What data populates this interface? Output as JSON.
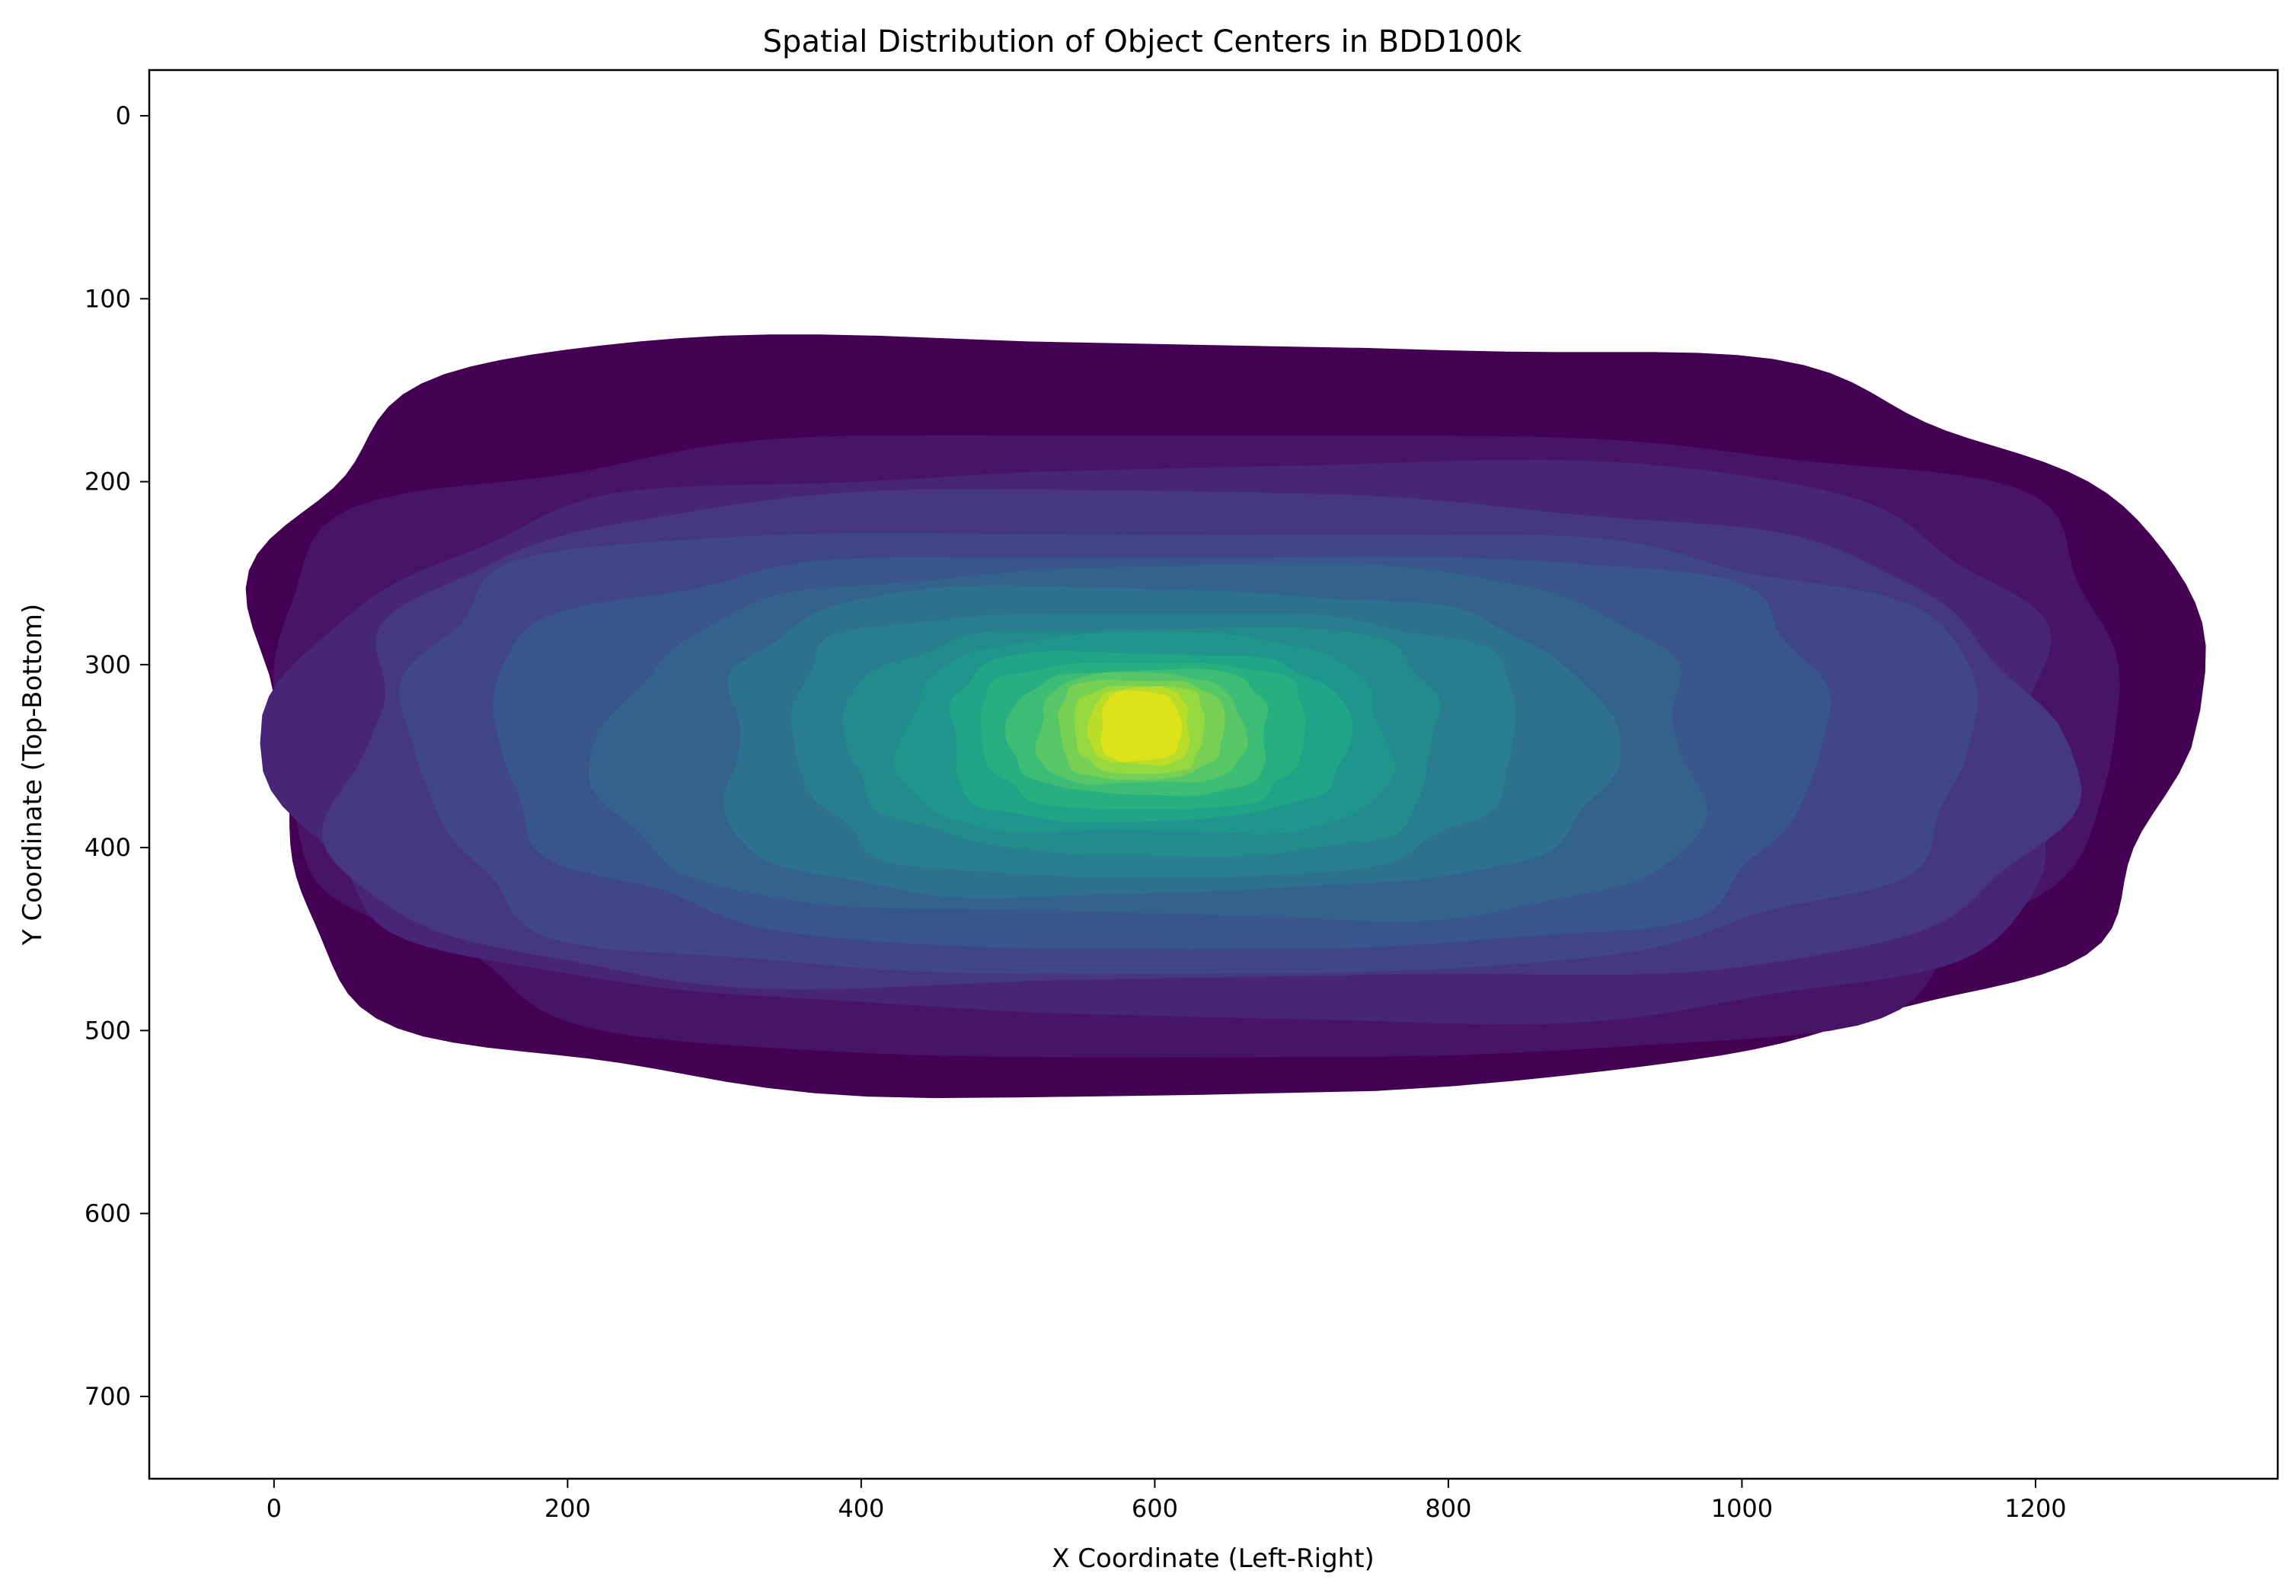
{
  "chart_data": {
    "type": "contour",
    "title": "Spatial Distribution of Object Centers in BDD100k",
    "xlabel": "X Coordinate (Left-Right)",
    "ylabel": "Y Coordinate (Top-Bottom)",
    "xlim": [
      -85,
      1365
    ],
    "ylim": [
      745,
      -25
    ],
    "y_inverted": true,
    "x_ticks": [
      0,
      200,
      400,
      600,
      800,
      1000,
      1200
    ],
    "y_ticks": [
      0,
      100,
      200,
      300,
      400,
      500,
      600,
      700
    ],
    "colormap": "viridis",
    "grid": false,
    "legend": "none",
    "density_peak": {
      "x": 590,
      "y": 335
    },
    "support_x_range": [
      -25,
      1290
    ],
    "support_y_range": [
      90,
      533
    ],
    "levels": [
      {
        "level": 1,
        "color": "#440154",
        "cx": 630,
        "cy": 325,
        "rx": 655,
        "ry": 205
      },
      {
        "level": 2,
        "color": "#481466",
        "cx": 630,
        "cy": 340,
        "rx": 625,
        "ry": 170
      },
      {
        "level": 3,
        "color": "#482677",
        "cx": 625,
        "cy": 343,
        "rx": 600,
        "ry": 150
      },
      {
        "level": 4,
        "color": "#453781",
        "cx": 620,
        "cy": 345,
        "rx": 580,
        "ry": 133
      },
      {
        "level": 5,
        "color": "#3f4788",
        "cx": 615,
        "cy": 345,
        "rx": 530,
        "ry": 120
      },
      {
        "level": 6,
        "color": "#39568c",
        "cx": 610,
        "cy": 345,
        "rx": 450,
        "ry": 107
      },
      {
        "level": 7,
        "color": "#33638d",
        "cx": 605,
        "cy": 345,
        "rx": 370,
        "ry": 95
      },
      {
        "level": 8,
        "color": "#2d718e",
        "cx": 600,
        "cy": 343,
        "rx": 300,
        "ry": 83
      },
      {
        "level": 9,
        "color": "#287d8e",
        "cx": 598,
        "cy": 342,
        "rx": 245,
        "ry": 72
      },
      {
        "level": 10,
        "color": "#238a8d",
        "cx": 596,
        "cy": 341,
        "rx": 200,
        "ry": 62
      },
      {
        "level": 11,
        "color": "#1f968b",
        "cx": 594,
        "cy": 340,
        "rx": 165,
        "ry": 54
      },
      {
        "level": 12,
        "color": "#20a386",
        "cx": 593,
        "cy": 339,
        "rx": 135,
        "ry": 46
      },
      {
        "level": 13,
        "color": "#29af7f",
        "cx": 592,
        "cy": 338,
        "rx": 110,
        "ry": 40
      },
      {
        "level": 14,
        "color": "#3cbc75",
        "cx": 591,
        "cy": 337,
        "rx": 88,
        "ry": 34
      },
      {
        "level": 15,
        "color": "#56c667",
        "cx": 590,
        "cy": 336,
        "rx": 70,
        "ry": 30
      },
      {
        "level": 16,
        "color": "#75d054",
        "cx": 590,
        "cy": 335,
        "rx": 56,
        "ry": 27
      },
      {
        "level": 17,
        "color": "#95d840",
        "cx": 590,
        "cy": 335,
        "rx": 44,
        "ry": 24
      },
      {
        "level": 18,
        "color": "#bade28",
        "cx": 590,
        "cy": 334,
        "rx": 34,
        "ry": 21
      },
      {
        "level": 19,
        "color": "#dde318",
        "cx": 590,
        "cy": 334,
        "rx": 27,
        "ry": 19
      }
    ]
  }
}
